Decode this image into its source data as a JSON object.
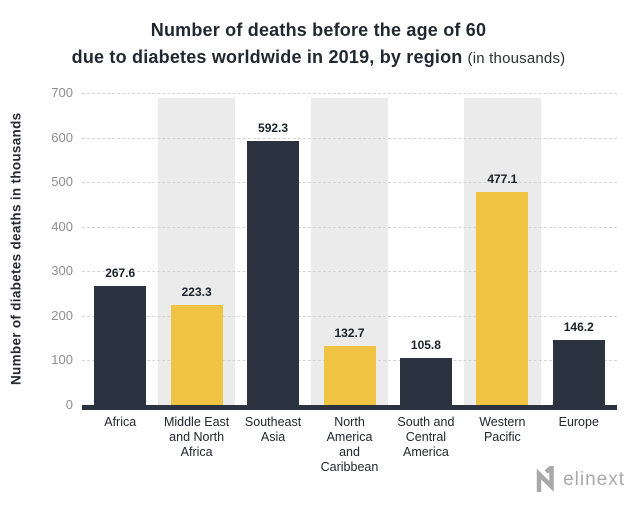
{
  "chart_data": {
    "type": "bar",
    "title": "Number of deaths before the age of 60 due to diabetes worldwide in 2019, by region (in thousands)",
    "title_lines": {
      "line1": "Number of deaths before the age of 60",
      "line2_bold": "due to diabetes worldwide in 2019, by region",
      "line2_light": "(in thousands)"
    },
    "ylabel": "Number of diabetes deaths in thousands",
    "xlabel": "",
    "categories": [
      "Africa",
      "Middle East and North Africa",
      "Southeast Asia",
      "North America and Caribbean",
      "South and Central America",
      "Western Pacific",
      "Europe"
    ],
    "category_lines": [
      [
        "Africa"
      ],
      [
        "Middle East",
        "and North",
        "Africa"
      ],
      [
        "Southeast",
        "Asia"
      ],
      [
        "North",
        "America",
        "and",
        "Caribbean"
      ],
      [
        "South and",
        "Central",
        "America"
      ],
      [
        "Western",
        "Pacific"
      ],
      [
        "Europe"
      ]
    ],
    "values": [
      267.6,
      223.3,
      592.3,
      132.7,
      105.8,
      477.1,
      146.2
    ],
    "value_labels": [
      "267.6",
      "223.3",
      "592.3",
      "132.7",
      "105.8",
      "477.1",
      "146.2"
    ],
    "bar_colors": [
      "#2b3340",
      "#f0c343",
      "#2b3340",
      "#f0c343",
      "#2b3340",
      "#f0c343",
      "#2b3340"
    ],
    "striped_columns": [
      1,
      3,
      5
    ],
    "yticks": [
      0,
      100,
      200,
      300,
      400,
      500,
      600,
      700
    ],
    "ylim": [
      0,
      700
    ],
    "grid": "horizontal dashed",
    "legend": "none"
  },
  "colors": {
    "background": "#ffffff",
    "bar_dark": "#2b3340",
    "bar_yellow": "#f0c343",
    "stripe": "#ebebeb",
    "gridline": "#d5d5d5",
    "tick_label": "#8e8e8e",
    "title_text": "#222831",
    "value_label": "#1a202a",
    "category_label": "#22262e",
    "axis_line": "#2b3340",
    "logo_gray": "#a9a9a9"
  },
  "logo": {
    "text": "elinext",
    "icon": "elinext-n-mark"
  }
}
